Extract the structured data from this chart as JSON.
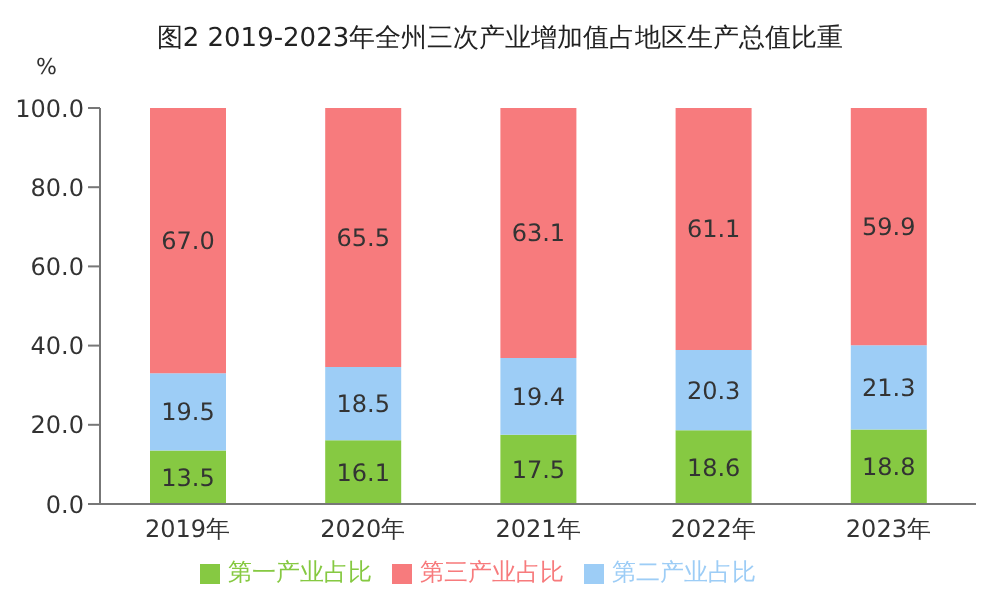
{
  "chart_data": {
    "type": "bar",
    "title": "图2 2019-2023年全州三次产业增加值占地区生产总值比重",
    "ylabel": "%",
    "categories": [
      "2019年",
      "2020年",
      "2021年",
      "2022年",
      "2023年"
    ],
    "stacked": true,
    "series": [
      {
        "name": "第一产业占比",
        "color": "#86c942",
        "values": [
          13.5,
          16.1,
          17.5,
          18.6,
          18.8
        ],
        "value_labels": [
          "13.5",
          "16.1",
          "17.5",
          "18.6",
          "18.8"
        ]
      },
      {
        "name": "第二产业占比",
        "color": "#9dcdf6",
        "values": [
          19.5,
          18.5,
          19.4,
          20.3,
          21.3
        ],
        "value_labels": [
          "19.5",
          "18.5",
          "19.4",
          "20.3",
          "21.3"
        ]
      },
      {
        "name": "第三产业占比",
        "color": "#f77b7d",
        "values": [
          67.0,
          65.5,
          63.1,
          61.1,
          59.9
        ],
        "value_labels": [
          "67.0",
          "65.5",
          "63.1",
          "61.1",
          "59.9"
        ]
      }
    ],
    "ylim": [
      0,
      100
    ],
    "yticks": [
      {
        "value": 0,
        "label": "0.0"
      },
      {
        "value": 20,
        "label": "20.0"
      },
      {
        "value": 40,
        "label": "40.0"
      },
      {
        "value": 60,
        "label": "60.0"
      },
      {
        "value": 80,
        "label": "80.0"
      },
      {
        "value": 100,
        "label": "100.0"
      }
    ],
    "grid": false,
    "legend": "bottom"
  }
}
